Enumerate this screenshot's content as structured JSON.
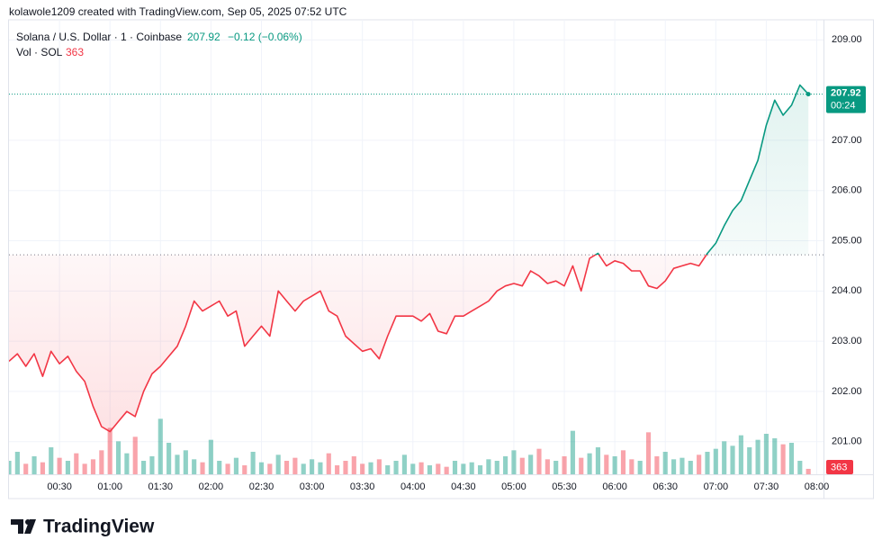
{
  "header": {
    "credit": "kolawole1209 created with TradingView.com, Sep 05, 2025 07:52 UTC"
  },
  "chart_data": {
    "type": "baseline",
    "title": "Solana / U.S. Dollar · 1 · Coinbase",
    "last_price": "207.92",
    "change": "−0.12 (−0.06%)",
    "countdown": "00:24",
    "volume_label": "Vol · SOL",
    "volume_last": "363",
    "baseline": 204.72,
    "up_color": "#089981",
    "down_color": "#f23645",
    "x": [
      "00:00",
      "00:05",
      "00:10",
      "00:15",
      "00:20",
      "00:25",
      "00:30",
      "00:35",
      "00:40",
      "00:45",
      "00:50",
      "00:55",
      "01:00",
      "01:05",
      "01:10",
      "01:15",
      "01:20",
      "01:25",
      "01:30",
      "01:35",
      "01:40",
      "01:45",
      "01:50",
      "01:55",
      "02:00",
      "02:05",
      "02:10",
      "02:15",
      "02:20",
      "02:25",
      "02:30",
      "02:35",
      "02:40",
      "02:45",
      "02:50",
      "02:55",
      "03:00",
      "03:05",
      "03:10",
      "03:15",
      "03:20",
      "03:25",
      "03:30",
      "03:35",
      "03:40",
      "03:45",
      "03:50",
      "03:55",
      "04:00",
      "04:05",
      "04:10",
      "04:15",
      "04:20",
      "04:25",
      "04:30",
      "04:35",
      "04:40",
      "04:45",
      "04:50",
      "04:55",
      "05:00",
      "05:05",
      "05:10",
      "05:15",
      "05:20",
      "05:25",
      "05:30",
      "05:35",
      "05:40",
      "05:45",
      "05:50",
      "05:55",
      "06:00",
      "06:05",
      "06:10",
      "06:15",
      "06:20",
      "06:25",
      "06:30",
      "06:35",
      "06:40",
      "06:45",
      "06:50",
      "06:55",
      "07:00",
      "07:05",
      "07:10",
      "07:15",
      "07:20",
      "07:25",
      "07:30",
      "07:35",
      "07:40",
      "07:45",
      "07:50",
      "07:55"
    ],
    "series": [
      {
        "name": "Price",
        "values": [
          202.6,
          202.75,
          202.5,
          202.75,
          202.3,
          202.8,
          202.55,
          202.7,
          202.4,
          202.2,
          201.7,
          201.3,
          201.2,
          201.4,
          201.6,
          201.5,
          202.0,
          202.35,
          202.5,
          202.7,
          202.9,
          203.3,
          203.8,
          203.6,
          203.7,
          203.8,
          203.5,
          203.6,
          202.9,
          203.1,
          203.3,
          203.1,
          204.0,
          203.8,
          203.6,
          203.8,
          203.9,
          204.0,
          203.6,
          203.5,
          203.1,
          202.95,
          202.8,
          202.85,
          202.65,
          203.1,
          203.5,
          203.5,
          203.5,
          203.4,
          203.55,
          203.2,
          203.15,
          203.5,
          203.5,
          203.6,
          203.7,
          203.8,
          204.0,
          204.1,
          204.15,
          204.1,
          204.4,
          204.3,
          204.15,
          204.2,
          204.1,
          204.5,
          204.0,
          204.65,
          204.75,
          204.5,
          204.6,
          204.55,
          204.4,
          204.4,
          204.1,
          204.05,
          204.2,
          204.45,
          204.5,
          204.55,
          204.5,
          204.75,
          204.95,
          205.3,
          205.6,
          205.8,
          206.2,
          206.6,
          207.3,
          207.8,
          207.5,
          207.7,
          208.1,
          207.92
        ]
      },
      {
        "name": "Volume",
        "axis": "y2",
        "values": [
          900,
          1500,
          700,
          1200,
          800,
          1800,
          1100,
          900,
          1400,
          700,
          1000,
          1600,
          3100,
          2200,
          1400,
          2500,
          900,
          1200,
          3700,
          2100,
          1300,
          1600,
          1000,
          800,
          2300,
          900,
          700,
          1100,
          600,
          1500,
          800,
          700,
          1300,
          900,
          1100,
          700,
          1000,
          800,
          1400,
          600,
          900,
          1200,
          700,
          800,
          1000,
          600,
          900,
          1300,
          700,
          800,
          600,
          700,
          500,
          900,
          700,
          800,
          600,
          1000,
          900,
          1200,
          1600,
          1100,
          1300,
          1700,
          1000,
          900,
          1200,
          2900,
          1100,
          1400,
          1800,
          1300,
          1200,
          1600,
          1000,
          900,
          2800,
          1200,
          1500,
          1000,
          1100,
          900,
          1300,
          1500,
          1700,
          2200,
          1900,
          2600,
          1800,
          2300,
          2700,
          2400,
          2000,
          2100,
          900,
          363
        ]
      }
    ],
    "ylim": [
      200.35,
      209.4
    ],
    "yticks": [
      {
        "value": 201,
        "label": "201.00"
      },
      {
        "value": 202,
        "label": "202.00"
      },
      {
        "value": 203,
        "label": "203.00"
      },
      {
        "value": 204,
        "label": "204.00"
      },
      {
        "value": 205,
        "label": "205.00"
      },
      {
        "value": 206,
        "label": "206.00"
      },
      {
        "value": 207,
        "label": "207.00"
      },
      {
        "value": 209,
        "label": "209.00"
      }
    ],
    "y2lim": [
      0,
      6000
    ],
    "xlim": [
      "00:00",
      "08:04"
    ],
    "xticks": [
      "00:30",
      "01:00",
      "01:30",
      "02:00",
      "02:30",
      "03:00",
      "03:30",
      "04:00",
      "04:30",
      "05:00",
      "05:30",
      "06:00",
      "06:30",
      "07:00",
      "07:30",
      "08:00"
    ],
    "grid": true
  },
  "footer": {
    "brand": "TradingView"
  }
}
